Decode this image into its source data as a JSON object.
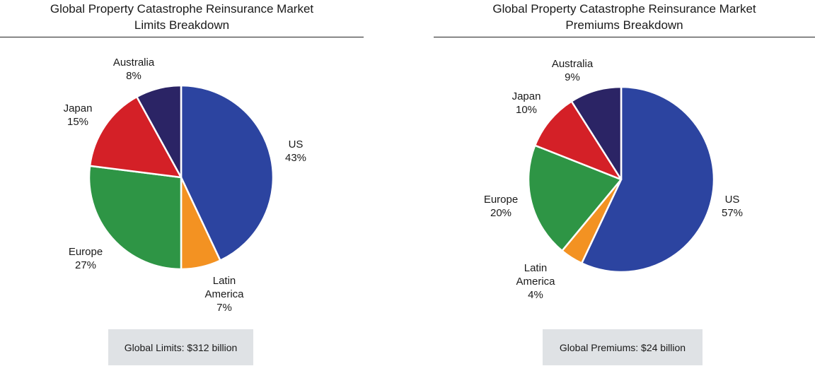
{
  "colors": {
    "US": "#2c44a0",
    "Latin America": "#f39222",
    "Europe": "#2e9545",
    "Japan": "#d42027",
    "Australia": "#2b2465"
  },
  "chart_data": [
    {
      "type": "pie",
      "title_line1": "Global Property Catastrophe Reinsurance Market",
      "title_line2": "Limits Breakdown",
      "slices": [
        {
          "label": "US",
          "value": 43,
          "pct": "43%"
        },
        {
          "label": "Latin America",
          "value": 7,
          "pct": "7%",
          "label_lines": [
            "Latin",
            "America"
          ]
        },
        {
          "label": "Europe",
          "value": 27,
          "pct": "27%"
        },
        {
          "label": "Japan",
          "value": 15,
          "pct": "15%"
        },
        {
          "label": "Australia",
          "value": 8,
          "pct": "8%"
        }
      ],
      "total_label": "Global Limits: $312 billion"
    },
    {
      "type": "pie",
      "title_line1": "Global Property Catastrophe Reinsurance Market",
      "title_line2": "Premiums Breakdown",
      "slices": [
        {
          "label": "US",
          "value": 57,
          "pct": "57%"
        },
        {
          "label": "Latin America",
          "value": 4,
          "pct": "4%",
          "label_lines": [
            "Latin",
            "America"
          ]
        },
        {
          "label": "Europe",
          "value": 20,
          "pct": "20%"
        },
        {
          "label": "Japan",
          "value": 10,
          "pct": "10%"
        },
        {
          "label": "Australia",
          "value": 9,
          "pct": "9%"
        }
      ],
      "total_label": "Global Premiums: $24 billion"
    }
  ]
}
